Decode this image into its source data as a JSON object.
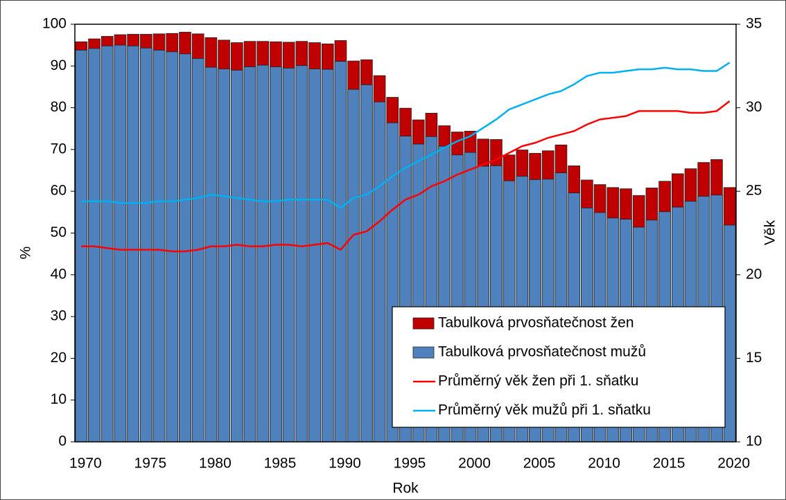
{
  "chart_data": {
    "type": "bar",
    "x_label": "Rok",
    "y_label": "%",
    "y2_label": "Věk",
    "categories": [
      "1970",
      null,
      null,
      null,
      null,
      "1975",
      null,
      null,
      null,
      null,
      "1980",
      null,
      null,
      null,
      null,
      "1985",
      null,
      null,
      null,
      null,
      "1990",
      null,
      null,
      null,
      null,
      "1995",
      null,
      null,
      null,
      null,
      "2000",
      null,
      null,
      null,
      null,
      "2005",
      null,
      null,
      null,
      null,
      "2010",
      null,
      null,
      null,
      null,
      "2015",
      null,
      null,
      null,
      null,
      "2020"
    ],
    "ylim": [
      0,
      100
    ],
    "yticks": [
      0,
      10,
      20,
      30,
      40,
      50,
      60,
      70,
      80,
      90,
      100
    ],
    "y2lim": [
      10,
      35
    ],
    "y2ticks": [
      10,
      15,
      20,
      25,
      30,
      35
    ],
    "legend": "bottom-right",
    "series": [
      {
        "name": "Tabulková prvosňatečnost žen",
        "type": "bar",
        "color": "#c00000",
        "values": [
          95.8,
          96.5,
          97.1,
          97.5,
          97.6,
          97.6,
          97.7,
          97.8,
          98.1,
          97.7,
          96.8,
          96.2,
          95.6,
          95.9,
          95.9,
          95.8,
          95.7,
          95.9,
          95.6,
          95.3,
          96.1,
          91.2,
          91.5,
          87.7,
          82.5,
          79.9,
          77.1,
          78.7,
          75.7,
          74.2,
          74.4,
          72.5,
          72.4,
          68.7,
          69.9,
          69.1,
          69.7,
          71.1,
          66.1,
          62.7,
          61.6,
          60.9,
          60.6,
          59.0,
          60.8,
          62.4,
          64.2,
          65.4,
          66.9,
          67.6,
          60.9
        ]
      },
      {
        "name": "Tabulková prvosňatečnost mužů",
        "type": "bar",
        "color": "#4f81bd",
        "values": [
          93.8,
          94.2,
          94.8,
          95.0,
          94.8,
          94.3,
          93.8,
          93.4,
          92.9,
          91.8,
          89.7,
          89.3,
          89.0,
          89.8,
          90.2,
          89.8,
          89.5,
          90.1,
          89.3,
          89.2,
          91.1,
          84.4,
          85.5,
          81.4,
          76.4,
          73.2,
          71.3,
          73.1,
          70.8,
          68.7,
          69.3,
          66.0,
          66.1,
          62.5,
          63.6,
          62.8,
          62.9,
          64.4,
          59.6,
          56.0,
          54.9,
          53.6,
          53.3,
          51.4,
          53.1,
          55.1,
          56.2,
          57.6,
          58.8,
          59.1,
          51.9
        ]
      },
      {
        "name": "Průměrný věk žen při 1. sňatku",
        "type": "line",
        "axis": "y2",
        "color": "#ff0000",
        "values": [
          21.7,
          21.7,
          21.6,
          21.5,
          21.5,
          21.5,
          21.5,
          21.4,
          21.4,
          21.5,
          21.7,
          21.7,
          21.8,
          21.7,
          21.7,
          21.8,
          21.8,
          21.7,
          21.8,
          21.9,
          21.5,
          22.4,
          22.6,
          23.2,
          23.9,
          24.5,
          24.8,
          25.3,
          25.6,
          26.0,
          26.3,
          26.6,
          26.9,
          27.3,
          27.7,
          27.9,
          28.2,
          28.4,
          28.6,
          29.0,
          29.3,
          29.4,
          29.5,
          29.8,
          29.8,
          29.8,
          29.8,
          29.7,
          29.7,
          29.8,
          30.4
        ]
      },
      {
        "name": "Průměrný věk mužů při 1. sňatku",
        "type": "line",
        "axis": "y2",
        "color": "#00b0f0",
        "values": [
          24.4,
          24.4,
          24.4,
          24.3,
          24.3,
          24.3,
          24.4,
          24.4,
          24.5,
          24.6,
          24.8,
          24.7,
          24.6,
          24.5,
          24.4,
          24.4,
          24.5,
          24.5,
          24.5,
          24.5,
          24.0,
          24.6,
          24.8,
          25.3,
          25.9,
          26.4,
          26.8,
          27.2,
          27.6,
          28.0,
          28.3,
          28.8,
          29.3,
          29.9,
          30.2,
          30.5,
          30.8,
          31.0,
          31.4,
          31.9,
          32.1,
          32.1,
          32.2,
          32.3,
          32.3,
          32.4,
          32.3,
          32.3,
          32.2,
          32.2,
          32.7
        ]
      }
    ]
  }
}
